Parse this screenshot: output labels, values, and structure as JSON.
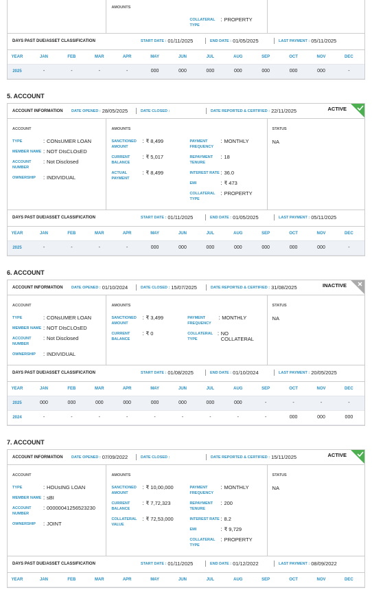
{
  "labels": {
    "account_information": "ACCOUNT INFORMATION",
    "date_opened": "DATE OPENED :",
    "date_closed": "DATE CLOSED :",
    "date_reported": "DATE REPORTED & CERTIFIED :",
    "account": "ACCOUNT",
    "amounts": "AMOUNTS",
    "status": "STATUS",
    "separator": ":",
    "dpd": "DAYS PAST DUE/ASSET CLASSIFICATION",
    "start_date": "START DATE :",
    "end_date": "END DATE :",
    "last_payment": "LAST PAYMENT :",
    "year": "YEAR",
    "months": [
      "JAN",
      "FEB",
      "MAR",
      "APR",
      "MAY",
      "JUN",
      "JUL",
      "AUG",
      "SEP",
      "OCT",
      "NOV",
      "DEC"
    ]
  },
  "accounts": [
    {
      "amounts_right": [
        {
          "label": "COLLATERAL TYPE",
          "value": "PROPERTY"
        }
      ],
      "dpd": {
        "start_date": "01/11/2025",
        "end_date": "01/05/2025",
        "last_payment": "05/11/2025"
      },
      "history": [
        {
          "year": "2025",
          "values": [
            "-",
            "-",
            "-",
            "-",
            "000",
            "000",
            "000",
            "000",
            "000",
            "000",
            "000",
            "-"
          ]
        }
      ]
    },
    {
      "heading": "5. ACCOUNT",
      "date_opened": "28/05/2025",
      "date_reported": "22/11/2025",
      "badge": "ACTIVE",
      "badge_color": "#4caf50",
      "account": [
        {
          "label": "TYPE",
          "value": "CONsUMER LOAN"
        },
        {
          "label": "MEMBER NAME",
          "value": "NOT DIsCLOsED"
        },
        {
          "label": "ACCOUNT NUMBER",
          "value": "Not Disclosed"
        },
        {
          "label": "OWNERSHIP",
          "value": "INDIVIDUAL"
        }
      ],
      "amounts_left": [
        {
          "label": "SANCTIONED AMOUNT",
          "value": "₹ 8,499"
        },
        {
          "label": "CURRENT BALANCE",
          "value": "₹ 5,017"
        },
        {
          "label": "ACTUAL PAYMENT",
          "value": "₹ 8,499"
        }
      ],
      "amounts_right": [
        {
          "label": "PAYMENT FREQUENCY",
          "value": "MONTHLY"
        },
        {
          "label": "REPAYMENT TENURE",
          "value": "18"
        },
        {
          "label": "INTEREST RATE",
          "value": "36.0"
        },
        {
          "label": "EMI",
          "value": "₹ 473"
        },
        {
          "label": "COLLATERAL TYPE",
          "value": "PROPERTY"
        }
      ],
      "status": "NA",
      "dpd": {
        "start_date": "01/11/2025",
        "end_date": "01/05/2025",
        "last_payment": "05/11/2025"
      },
      "history": [
        {
          "year": "2025",
          "values": [
            "-",
            "-",
            "-",
            "-",
            "000",
            "000",
            "000",
            "000",
            "000",
            "000",
            "000",
            "-"
          ]
        }
      ]
    },
    {
      "heading": "6. ACCOUNT",
      "date_opened": "01/10/2024",
      "date_closed": "15/07/2025",
      "date_reported": "31/08/2025",
      "badge": "INACTIVE",
      "badge_color": "#aaaaaa",
      "account": [
        {
          "label": "TYPE",
          "value": "CONsUMER LOAN"
        },
        {
          "label": "MEMBER NAME",
          "value": "NOT DIsCLOsED"
        },
        {
          "label": "ACCOUNT NUMBER",
          "value": "Not Disclosed"
        },
        {
          "label": "OWNERSHIP",
          "value": "INDIVIDUAL"
        }
      ],
      "amounts_left": [
        {
          "label": "SANCTIONED AMOUNT",
          "value": "₹ 3,499"
        },
        {
          "label": "CURRENT BALANCE",
          "value": "₹ 0"
        }
      ],
      "amounts_right": [
        {
          "label": "PAYMENT FREQUENCY",
          "value": "MONTHLY"
        },
        {
          "label": "COLLATERAL TYPE",
          "value": "NO COLLATERAL"
        }
      ],
      "status": "NA",
      "dpd": {
        "start_date": "01/08/2025",
        "end_date": "01/10/2024",
        "last_payment": "20/05/2025"
      },
      "history": [
        {
          "year": "2025",
          "values": [
            "000",
            "000",
            "000",
            "000",
            "000",
            "000",
            "000",
            "000",
            "-",
            "-",
            "-",
            "-"
          ]
        },
        {
          "year": "2024",
          "values": [
            "-",
            "-",
            "-",
            "-",
            "-",
            "-",
            "-",
            "-",
            "-",
            "000",
            "000",
            "000"
          ]
        }
      ]
    },
    {
      "heading": "7. ACCOUNT",
      "date_opened": "07/09/2022",
      "date_reported": "15/11/2025",
      "badge": "ACTIVE",
      "badge_color": "#4caf50",
      "account": [
        {
          "label": "TYPE",
          "value": "HOUsING LOAN"
        },
        {
          "label": "MEMBER NAME",
          "value": "sBI"
        },
        {
          "label": "ACCOUNT NUMBER",
          "value": "00000041256523230"
        },
        {
          "label": "OWNERSHIP",
          "value": "JOINT"
        }
      ],
      "amounts_left": [
        {
          "label": "SANCTIONED AMOUNT",
          "value": "₹ 10,00,000"
        },
        {
          "label": "CURRENT BALANCE",
          "value": "₹ 7,72,323"
        },
        {
          "label": "COLLATERAL VALUE",
          "value": "₹ 72,53,000"
        }
      ],
      "amounts_right": [
        {
          "label": "PAYMENT FREQUENCY",
          "value": "MONTHLY"
        },
        {
          "label": "REPAYMENT TENURE",
          "value": "200"
        },
        {
          "label": "INTEREST RATE",
          "value": "8.2"
        },
        {
          "label": "EMI",
          "value": "₹ 9,729"
        },
        {
          "label": "COLLATERAL TYPE",
          "value": "PROPERTY"
        }
      ],
      "status": "NA",
      "dpd": {
        "start_date": "01/11/2025",
        "end_date": "01/12/2022",
        "last_payment": "08/09/2022"
      },
      "history": []
    }
  ]
}
